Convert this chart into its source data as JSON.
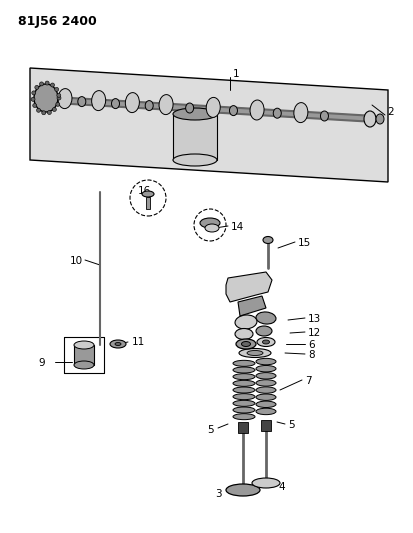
{
  "title": "81J56 2400",
  "bg_color": "#ffffff",
  "lc": "#000000",
  "fig_w": 4.13,
  "fig_h": 5.33,
  "dpi": 100
}
